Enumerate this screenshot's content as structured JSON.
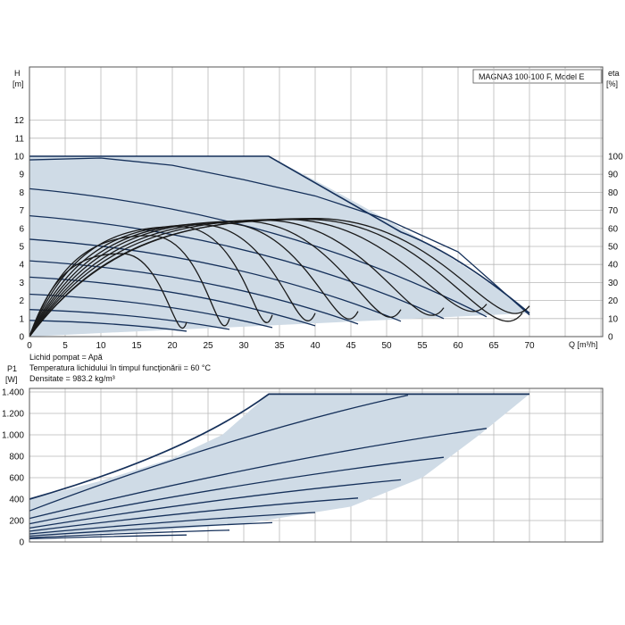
{
  "colors": {
    "area": "#cfdbe6",
    "curve_dark": "#15305a",
    "curve": "#1a1a1a",
    "grid": "#b9b9b9"
  },
  "chart_data": [
    {
      "type": "line",
      "title": "MAGNA3 100-100 F, Model E",
      "ylabel_symbol": "H",
      "ylabel_unit": "[m]",
      "y2label_symbol": "eta",
      "y2label_unit": "[%]",
      "xlabel": "Q [m³/h]",
      "xlim": [
        0,
        70
      ],
      "ylim": [
        0,
        13
      ],
      "y2lim": [
        0,
        130
      ],
      "x_ticks": [
        0,
        5,
        10,
        15,
        20,
        25,
        30,
        35,
        40,
        45,
        50,
        55,
        60,
        65,
        70
      ],
      "y_ticks": [
        0,
        1,
        2,
        3,
        4,
        5,
        6,
        7,
        8,
        9,
        10,
        11,
        12
      ],
      "y2_ticks": [
        0,
        10,
        20,
        30,
        40,
        50,
        60,
        70,
        80,
        90,
        100
      ],
      "grid": true,
      "operating_area": {
        "name": "max curve",
        "x": [
          0,
          33.5,
          52,
          70
        ],
        "y": [
          10,
          10,
          5.8,
          1.3
        ]
      },
      "head_curves": [
        {
          "x": [
            0,
            10,
            20,
            30,
            40,
            50,
            60,
            70
          ],
          "y": [
            9.8,
            9.9,
            9.5,
            8.7,
            7.8,
            6.5,
            4.7,
            1.2
          ]
        },
        {
          "x": [
            0,
            64
          ],
          "y": [
            8.2,
            1.1
          ]
        },
        {
          "x": [
            0,
            58
          ],
          "y": [
            6.7,
            1.0
          ]
        },
        {
          "x": [
            0,
            52
          ],
          "y": [
            5.4,
            0.85
          ]
        },
        {
          "x": [
            0,
            46
          ],
          "y": [
            4.2,
            0.7
          ]
        },
        {
          "x": [
            0,
            40
          ],
          "y": [
            3.3,
            0.6
          ]
        },
        {
          "x": [
            0,
            34
          ],
          "y": [
            2.35,
            0.5
          ]
        },
        {
          "x": [
            0,
            28
          ],
          "y": [
            1.5,
            0.4
          ]
        },
        {
          "x": [
            0,
            22
          ],
          "y": [
            0.9,
            0.3
          ]
        }
      ],
      "efficiency_curves": [
        {
          "end_x": 70,
          "end_y": 17,
          "peak_x": 40,
          "peak_y": 65.5
        },
        {
          "end_x": 69,
          "end_y": 13,
          "peak_x": 39,
          "peak_y": 65
        },
        {
          "end_x": 64,
          "end_y": 18,
          "peak_x": 36,
          "peak_y": 65
        },
        {
          "end_x": 58,
          "end_y": 16,
          "peak_x": 33,
          "peak_y": 64.5
        },
        {
          "end_x": 52,
          "end_y": 15,
          "peak_x": 30,
          "peak_y": 64
        },
        {
          "end_x": 46,
          "end_y": 14,
          "peak_x": 27,
          "peak_y": 63
        },
        {
          "end_x": 40,
          "end_y": 13,
          "peak_x": 24,
          "peak_y": 62
        },
        {
          "end_x": 34,
          "end_y": 12,
          "peak_x": 21,
          "peak_y": 61
        },
        {
          "end_x": 28,
          "end_y": 10,
          "peak_x": 17,
          "peak_y": 56
        },
        {
          "end_x": 22,
          "end_y": 8,
          "peak_x": 13,
          "peak_y": 46
        }
      ]
    },
    {
      "type": "line",
      "ylabel_symbol": "P1",
      "ylabel_unit": "[W]",
      "xlim": [
        0,
        70
      ],
      "ylim": [
        0,
        1480
      ],
      "y_ticks": [
        0,
        200,
        400,
        600,
        800,
        1000,
        1200,
        1400
      ],
      "y_tick_labels": [
        "0",
        "200",
        "400",
        "600",
        "800",
        "1.000",
        "1.200",
        "1.400"
      ],
      "grid": true,
      "operating_area": {
        "x": [
          0,
          10,
          20,
          27,
          33.5,
          70,
          63,
          55,
          45,
          30,
          15,
          0
        ],
        "y": [
          400,
          570,
          780,
          1000,
          1380,
          1380,
          1000,
          600,
          330,
          170,
          90,
          60
        ]
      },
      "power_curves": [
        {
          "x": [
            0,
            33.5,
            54,
            70
          ],
          "y": [
            400,
            1380,
            1380,
            1380
          ],
          "dark": true
        },
        {
          "x": [
            0,
            53
          ],
          "y": [
            290,
            1370
          ]
        },
        {
          "x": [
            0,
            64
          ],
          "y": [
            220,
            1060
          ]
        },
        {
          "x": [
            0,
            58
          ],
          "y": [
            170,
            790
          ]
        },
        {
          "x": [
            0,
            52
          ],
          "y": [
            130,
            580
          ]
        },
        {
          "x": [
            0,
            46
          ],
          "y": [
            100,
            410
          ]
        },
        {
          "x": [
            0,
            40
          ],
          "y": [
            75,
            275
          ]
        },
        {
          "x": [
            0,
            34
          ],
          "y": [
            55,
            180
          ]
        },
        {
          "x": [
            0,
            28
          ],
          "y": [
            40,
            110
          ]
        },
        {
          "x": [
            0,
            22
          ],
          "y": [
            30,
            65
          ]
        }
      ]
    }
  ],
  "notes": [
    "Lichid pompat = Apă",
    "Temperatura lichidului în timpul funcţionării = 60 °C",
    "Densitate = 983.2 kg/m³"
  ]
}
